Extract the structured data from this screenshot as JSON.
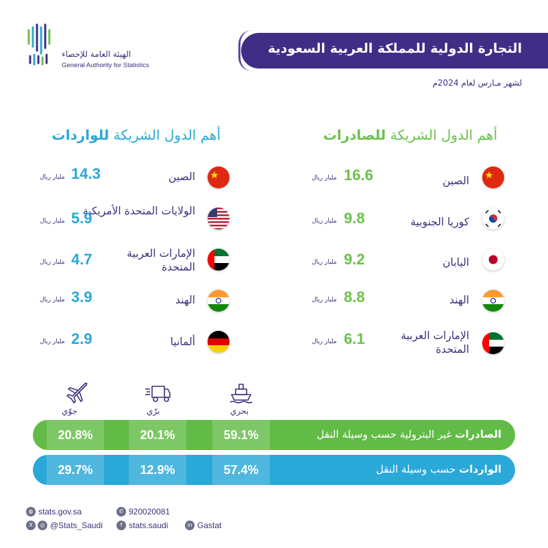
{
  "org": {
    "name_ar": "الهيئة العامة للإحصاء",
    "name_en": "General Authority for Statistics"
  },
  "title": "التجارة الدولية للمملكة العربية السعودية",
  "subtitle": "لشهر مـارس لعام 2024م",
  "exports": {
    "heading_prefix": "أهم الدول الشريكة",
    "heading_bold": "للصادرات",
    "unit": "مليار ريال",
    "rows": [
      {
        "country": "الصين",
        "value": "16.6",
        "flag": "china-flag"
      },
      {
        "country": "كوريا الجنوبية",
        "value": "9.8",
        "flag": "south-korea-flag"
      },
      {
        "country": "اليابان",
        "value": "9.2",
        "flag": "japan-flag"
      },
      {
        "country": "الهند",
        "value": "8.8",
        "flag": "india-flag"
      },
      {
        "country": "الإمارات العربية المتحدة",
        "value": "6.1",
        "flag": "uae-flag"
      }
    ]
  },
  "imports": {
    "heading_prefix": "أهم الدول الشريكة",
    "heading_bold": "للواردات",
    "unit": "مليار ريال",
    "rows": [
      {
        "country": "الصين",
        "value": "14.3",
        "flag": "china-flag"
      },
      {
        "country": "الولايات المتحدة الأمريكية",
        "value": "5.9",
        "flag": "usa-flag"
      },
      {
        "country": "الإمارات العربية المتحدة",
        "value": "4.7",
        "flag": "uae-flag"
      },
      {
        "country": "الهند",
        "value": "3.9",
        "flag": "india-flag"
      },
      {
        "country": "ألمانيا",
        "value": "2.9",
        "flag": "germany-flag"
      }
    ]
  },
  "transport": {
    "modes": [
      {
        "label": "جوّي",
        "icon": "airplane-icon"
      },
      {
        "label": "برّي",
        "icon": "truck-icon"
      },
      {
        "label": "بحري",
        "icon": "ship-icon"
      }
    ],
    "exports_bar": {
      "label_bold": "الصادرات",
      "label_rest": "غير البترولية حسب وسيلة النقل",
      "air": "20.8%",
      "land": "20.1%",
      "sea": "59.1%"
    },
    "imports_bar": {
      "label_bold": "الواردات",
      "label_rest": "حسب وسيلة النقل",
      "air": "29.7%",
      "land": "12.9%",
      "sea": "57.4%"
    }
  },
  "footer": {
    "website": "stats.gov.sa",
    "phone": "920020081",
    "social": "@Stats_Saudi",
    "facebook": "stats.saudi",
    "linkedin": "Gastat"
  },
  "colors": {
    "primary": "#3f2d86",
    "exports": "#62bb46",
    "imports": "#2aa8d8"
  }
}
